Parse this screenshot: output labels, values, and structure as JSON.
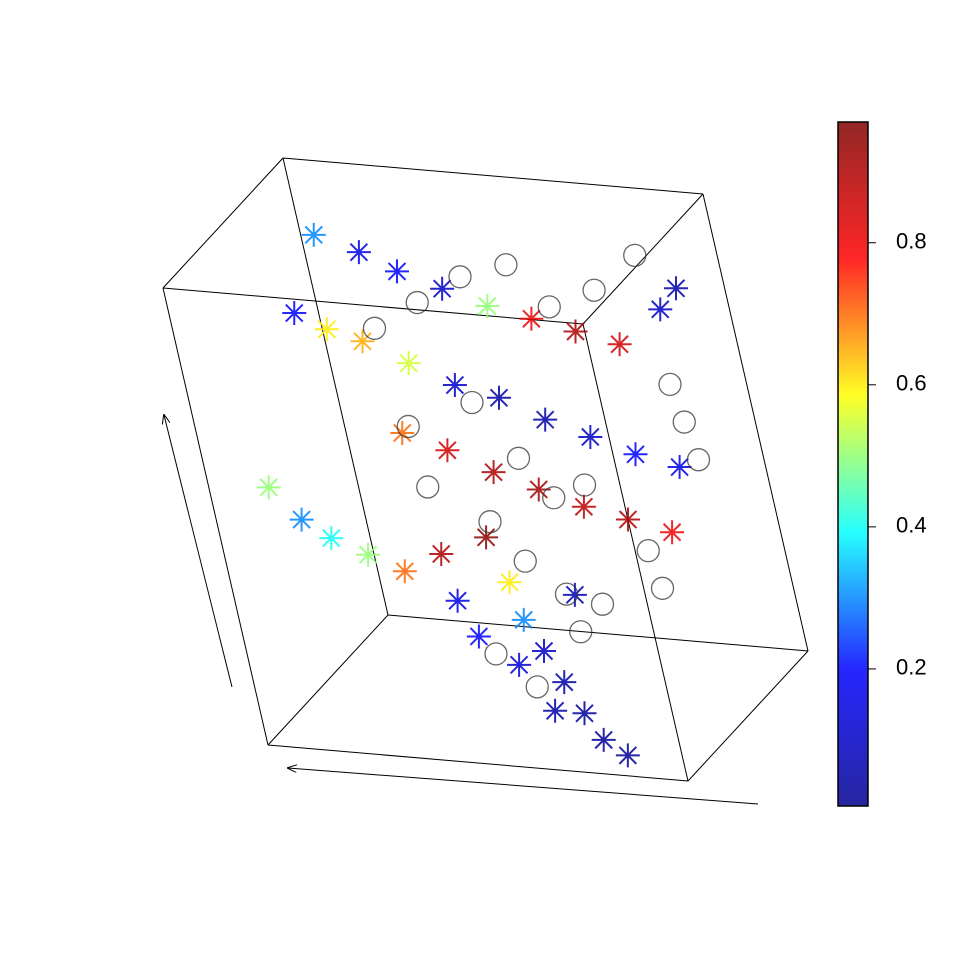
{
  "chart_data": {
    "type": "scatter3d",
    "xlim": [
      0,
      1
    ],
    "ylim": [
      0,
      1
    ],
    "zlim": [
      0,
      1
    ],
    "colormap": [
      "#00008f",
      "#0000ff",
      "#00ffff",
      "#ffff00",
      "#ff0000",
      "#800000"
    ],
    "clim": [
      0.007,
      0.97
    ],
    "cticks": [
      0.2,
      0.4,
      0.6,
      0.8
    ],
    "series": [
      {
        "marker": "star",
        "x": [
          0.05,
          0.15,
          0.25,
          0.35,
          0.45,
          0.55,
          0.65,
          0.75,
          0.85,
          0.9,
          0.05,
          0.12,
          0.2,
          0.3,
          0.4,
          0.5,
          0.6,
          0.7,
          0.8,
          0.9,
          0.3,
          0.4,
          0.5,
          0.6,
          0.7,
          0.8,
          0.9,
          0.0,
          0.08,
          0.16,
          0.24,
          0.32,
          0.4,
          0.5,
          0.55,
          0.6,
          0.5,
          0.65,
          0.7,
          0.75,
          0.8,
          0.85,
          0.68,
          0.6,
          0.45,
          0.72
        ],
        "y": [
          0.95,
          0.95,
          0.9,
          0.9,
          0.9,
          0.9,
          0.9,
          0.9,
          0.95,
          0.95,
          0.7,
          0.7,
          0.7,
          0.7,
          0.7,
          0.7,
          0.7,
          0.7,
          0.7,
          0.7,
          0.55,
          0.55,
          0.55,
          0.55,
          0.55,
          0.55,
          0.55,
          0.4,
          0.35,
          0.3,
          0.3,
          0.3,
          0.35,
          0.4,
          0.35,
          0.25,
          0.2,
          0.2,
          0.15,
          0.1,
          0.05,
          0.05,
          0.1,
          0.15,
          0.25,
          0.3
        ],
        "z": [
          0.85,
          0.82,
          0.8,
          0.77,
          0.74,
          0.72,
          0.7,
          0.68,
          0.75,
          0.8,
          0.75,
          0.72,
          0.7,
          0.66,
          0.62,
          0.6,
          0.56,
          0.53,
          0.5,
          0.48,
          0.55,
          0.52,
          0.48,
          0.45,
          0.42,
          0.4,
          0.38,
          0.45,
          0.4,
          0.38,
          0.35,
          0.32,
          0.35,
          0.38,
          0.3,
          0.25,
          0.22,
          0.2,
          0.15,
          0.1,
          0.06,
          0.03,
          0.1,
          0.18,
          0.28,
          0.3
        ],
        "values": [
          0.3,
          0.15,
          0.2,
          0.1,
          0.5,
          0.8,
          0.9,
          0.85,
          0.1,
          0.05,
          0.2,
          0.6,
          0.65,
          0.55,
          0.1,
          0.05,
          0.05,
          0.1,
          0.2,
          0.15,
          0.7,
          0.85,
          0.9,
          0.92,
          0.88,
          0.9,
          0.8,
          0.5,
          0.3,
          0.4,
          0.5,
          0.7,
          0.9,
          0.95,
          0.6,
          0.3,
          0.2,
          0.1,
          0.05,
          0.03,
          0.02,
          0.02,
          0.05,
          0.12,
          0.15,
          0.08
        ]
      },
      {
        "marker": "circle",
        "color": "#333333",
        "x": [
          0.2,
          0.3,
          0.4,
          0.5,
          0.6,
          0.7,
          0.8,
          0.85,
          0.9,
          0.95,
          0.3,
          0.45,
          0.55,
          0.65,
          0.75,
          0.85,
          0.9,
          0.35,
          0.5,
          0.6,
          0.7,
          0.8,
          0.55,
          0.65,
          0.75
        ],
        "y": [
          0.8,
          0.85,
          0.9,
          0.95,
          0.9,
          0.95,
          1.0,
          0.9,
          0.8,
          0.7,
          0.6,
          0.65,
          0.6,
          0.5,
          0.45,
          0.5,
          0.4,
          0.5,
          0.45,
          0.35,
          0.3,
          0.25,
          0.15,
          0.1,
          0.2
        ],
        "z": [
          0.7,
          0.75,
          0.8,
          0.82,
          0.75,
          0.78,
          0.85,
          0.6,
          0.55,
          0.5,
          0.55,
          0.6,
          0.5,
          0.45,
          0.5,
          0.35,
          0.3,
          0.45,
          0.4,
          0.35,
          0.3,
          0.3,
          0.2,
          0.15,
          0.25
        ]
      }
    ]
  }
}
